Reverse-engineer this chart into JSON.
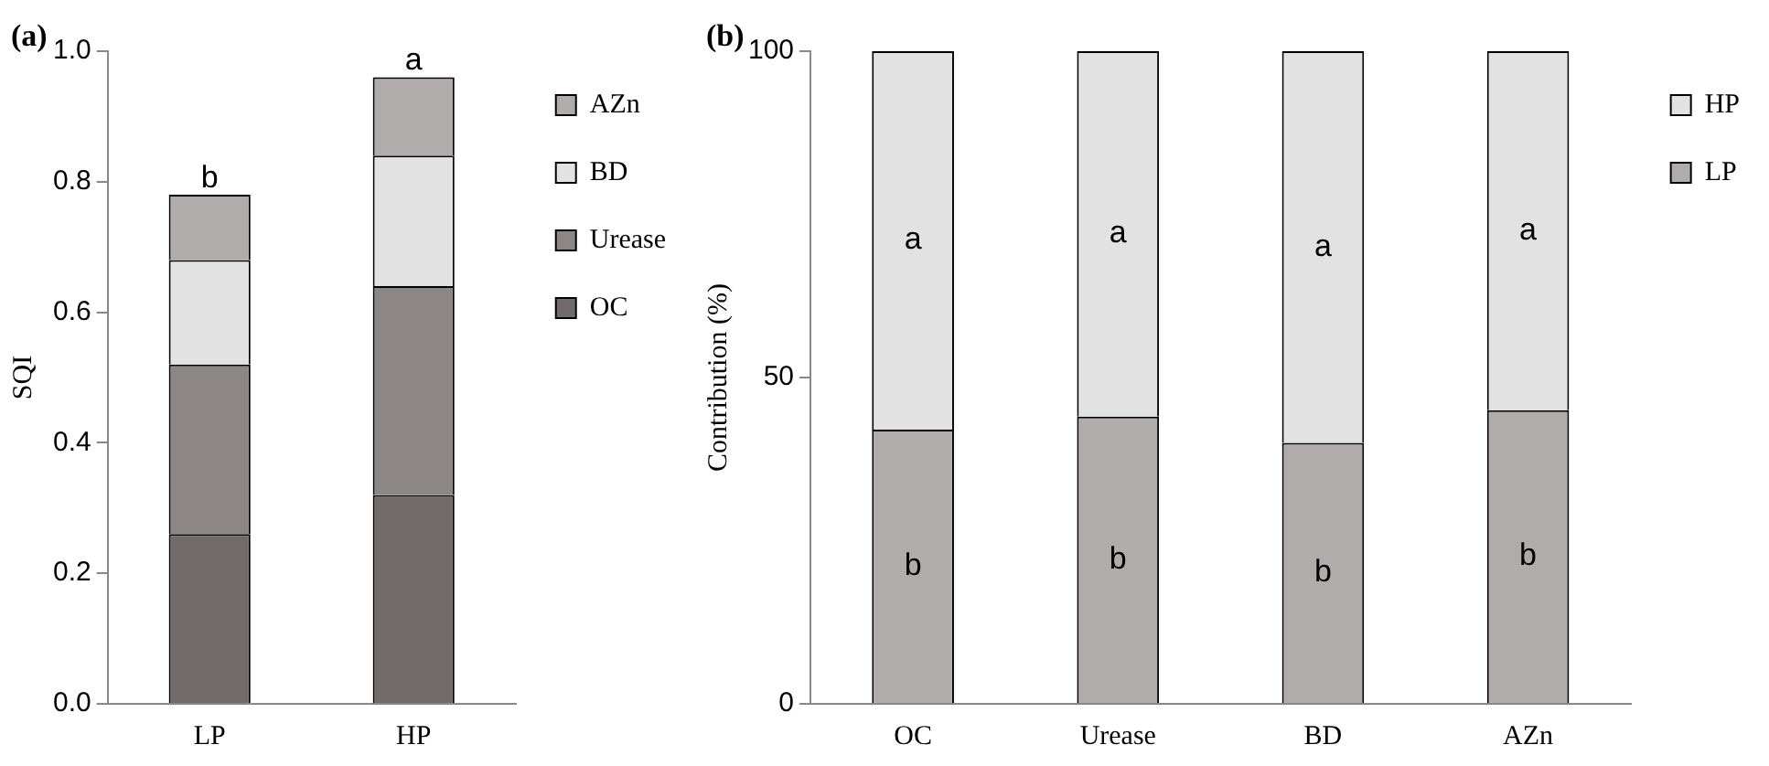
{
  "chart_data": [
    {
      "type": "bar",
      "title": "(a)",
      "ylabel": "SQI",
      "categories": [
        "LP",
        "HP"
      ],
      "stacked": true,
      "legend": "right",
      "series": [
        {
          "name": "OC",
          "color": "#716b6b",
          "values": [
            0.26,
            0.32
          ]
        },
        {
          "name": "Urease",
          "color": "#8c8686",
          "values": [
            0.26,
            0.32
          ]
        },
        {
          "name": "BD",
          "color": "#e2e2e2",
          "values": [
            0.16,
            0.2
          ]
        },
        {
          "name": "AZn",
          "color": "#b0acac",
          "values": [
            0.1,
            0.12
          ]
        }
      ],
      "ylim": [
        0,
        1
      ],
      "yticks": [
        {
          "value": 0,
          "label": "0.0"
        },
        0.2,
        0.4,
        0.6,
        0.8,
        {
          "value": 1,
          "label": "1.0"
        }
      ],
      "annotations": [
        {
          "text": "b",
          "x": "LP",
          "y": 0.77
        },
        {
          "text": "a",
          "x": "HP",
          "y": 0.95
        }
      ]
    },
    {
      "type": "bar",
      "title": "(b)",
      "ylabel": "Contribution (%)",
      "categories": [
        "OC",
        "Urease",
        "BD",
        "AZn"
      ],
      "stacked": true,
      "legend": "right",
      "series": [
        {
          "name": "LP",
          "color": "#b0acac",
          "values": [
            42,
            44,
            40,
            45
          ],
          "value_labels": [
            "b",
            "b",
            "b",
            "b"
          ]
        },
        {
          "name": "HP",
          "color": "#e2e2e2",
          "values": [
            58,
            56,
            60,
            55
          ],
          "value_labels": [
            "a",
            "a",
            "a",
            "a"
          ]
        }
      ],
      "ylim": [
        0,
        100
      ],
      "yticks": [
        0,
        50,
        100
      ]
    }
  ]
}
